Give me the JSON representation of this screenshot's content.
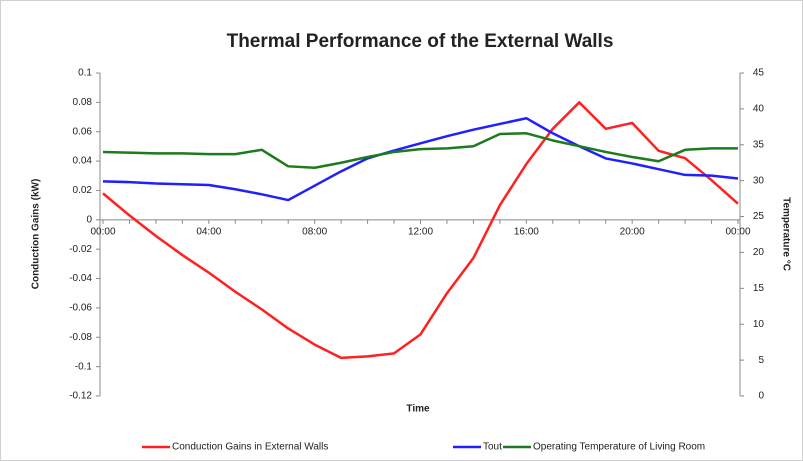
{
  "chart_data": {
    "type": "line",
    "title": "Thermal Performance of the External Walls",
    "x_label": "Time",
    "y_label": "Conduction Gains (kW)",
    "y2_label": "Temperature °C",
    "categories": [
      "00:00",
      null,
      null,
      null,
      "04:00",
      null,
      null,
      null,
      "08:00",
      null,
      null,
      null,
      "12:00",
      null,
      null,
      null,
      "16:00",
      null,
      null,
      null,
      "20:00",
      null,
      null,
      null,
      "00:00"
    ],
    "series": [
      {
        "name": "Conduction Gains in External Walls",
        "color": "#ff2020",
        "values": [
          0.018,
          0.003,
          -0.011,
          -0.024,
          -0.036,
          -0.049,
          -0.061,
          -0.074,
          -0.085,
          -0.094,
          -0.093,
          -0.091,
          -0.078,
          -0.05,
          -0.026,
          0.01,
          0.038,
          0.062,
          0.08,
          0.062,
          0.066,
          0.047,
          0.042,
          0.027,
          0.011
        ]
      },
      {
        "name": "Tout",
        "color": "#2020ff",
        "axis": "y2",
        "values": [
          29.9,
          29.8,
          29.6,
          29.5,
          29.4,
          28.8,
          28.1,
          27.3,
          29.3,
          31.3,
          33.1,
          34.2,
          35.2,
          36.2,
          37.1,
          37.9,
          38.7,
          36.6,
          34.8,
          33.1,
          32.4,
          31.6,
          30.8,
          30.7,
          30.3
        ]
      },
      {
        "name": "Operating Temperature of Living Room",
        "color": "#1e7a1e",
        "axis": "y2",
        "values": [
          34.0,
          33.9,
          33.8,
          33.8,
          33.7,
          33.7,
          34.3,
          32.0,
          31.8,
          32.5,
          33.3,
          34.0,
          34.4,
          34.5,
          34.8,
          36.5,
          36.6,
          35.6,
          34.8,
          34.0,
          33.3,
          32.7,
          34.3,
          34.5,
          34.5
        ]
      }
    ],
    "ylim": [
      -0.12,
      0.1
    ],
    "yticks": [
      -0.12,
      -0.1,
      -0.08,
      -0.06,
      -0.04,
      -0.02,
      0,
      0.02,
      0.04,
      0.06,
      0.08,
      0.1
    ],
    "y2lim": [
      0,
      45
    ],
    "y2ticks": [
      0,
      5,
      10,
      15,
      20,
      25,
      30,
      35,
      40,
      45
    ],
    "grid": false,
    "legend": "bottom"
  }
}
